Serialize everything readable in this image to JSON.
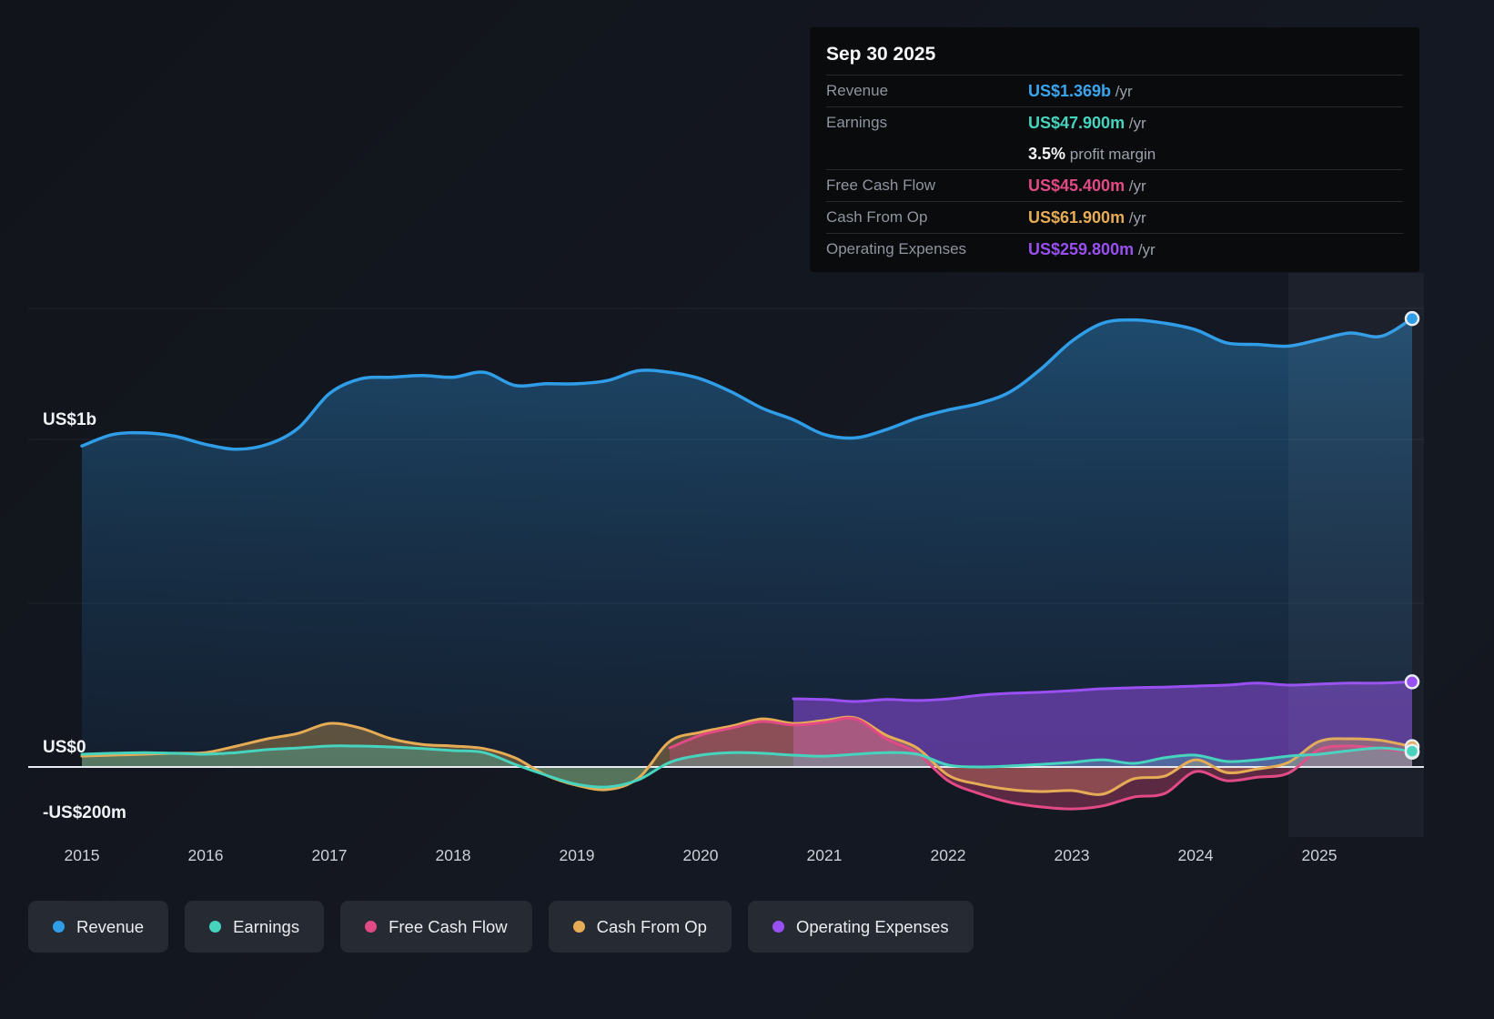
{
  "tooltip": {
    "date": "Sep 30 2025",
    "rows": [
      {
        "label": "Revenue",
        "value": "US$1.369b",
        "suffix": "/yr",
        "color": "#3ba6f0",
        "separator": true
      },
      {
        "label": "Earnings",
        "value": "US$47.900m",
        "suffix": "/yr",
        "color": "#46d4be",
        "separator": true
      },
      {
        "label": "",
        "value": "3.5%",
        "suffix": "profit margin",
        "color": "#f2f4f6",
        "separator": false
      },
      {
        "label": "Free Cash Flow",
        "value": "US$45.400m",
        "suffix": "/yr",
        "color": "#e14a84",
        "separator": true
      },
      {
        "label": "Cash From Op",
        "value": "US$61.900m",
        "suffix": "/yr",
        "color": "#e6ac55",
        "separator": true
      },
      {
        "label": "Operating Expenses",
        "value": "US$259.800m",
        "suffix": "/yr",
        "color": "#9a4ff2",
        "separator": true
      }
    ]
  },
  "legend": {
    "items": [
      {
        "label": "Revenue",
        "color": "#2f9de8"
      },
      {
        "label": "Earnings",
        "color": "#46d4be"
      },
      {
        "label": "Free Cash Flow",
        "color": "#e14a84"
      },
      {
        "label": "Cash From Op",
        "color": "#e6ac55"
      },
      {
        "label": "Operating Expenses",
        "color": "#9a4ff2"
      }
    ]
  },
  "chart_data": {
    "type": "area",
    "title": "Past earnings and revenue history with trailing values to Sep 30 2025",
    "unit": "US$ millions per year",
    "x_start": 2015,
    "x_step": 0.25,
    "x_end": 2025.75,
    "x_tick_start": 2015,
    "x_ticks": [
      "2015",
      "2016",
      "2017",
      "2018",
      "2019",
      "2020",
      "2021",
      "2022",
      "2023",
      "2024",
      "2025"
    ],
    "y_ticks": [
      {
        "label": "US$1b",
        "value": 1000
      },
      {
        "label": "US$0",
        "value": 0
      },
      {
        "label": "-US$200m",
        "value": -200
      }
    ],
    "ylim": [
      -230,
      1500
    ],
    "grid_values": [
      1400,
      1000,
      500
    ],
    "grid": true,
    "legend_position": "bottom",
    "highlight_start_x": 2024.75,
    "series": [
      {
        "name": "Revenue",
        "color": "#2f9de8",
        "gradient": true,
        "fill_opacity": 0.35,
        "line_width": 3.5,
        "end_marker": true,
        "values": [
          980,
          1015,
          1020,
          1010,
          985,
          970,
          985,
          1035,
          1140,
          1185,
          1190,
          1195,
          1190,
          1205,
          1165,
          1170,
          1170,
          1180,
          1210,
          1205,
          1185,
          1145,
          1095,
          1060,
          1015,
          1005,
          1030,
          1065,
          1090,
          1110,
          1145,
          1215,
          1300,
          1355,
          1365,
          1355,
          1335,
          1295,
          1290,
          1285,
          1305,
          1325,
          1315,
          1369
        ]
      },
      {
        "name": "Operating Expenses",
        "color": "#9a4ff2",
        "gradient": false,
        "fill_opacity": 0.5,
        "line_width": 3,
        "end_marker": true,
        "values": [
          null,
          null,
          null,
          null,
          null,
          null,
          null,
          null,
          null,
          null,
          null,
          null,
          null,
          null,
          null,
          null,
          null,
          null,
          null,
          null,
          null,
          null,
          null,
          208,
          206,
          200,
          206,
          203,
          208,
          219,
          225,
          228,
          233,
          239,
          242,
          244,
          247,
          250,
          256,
          250,
          253,
          256,
          256,
          260
        ]
      },
      {
        "name": "Cash From Op",
        "color": "#e6ac55",
        "gradient": false,
        "fill_opacity": 0.35,
        "line_width": 3,
        "end_marker": true,
        "values": [
          33,
          36,
          39,
          42,
          44,
          64,
          86,
          103,
          133,
          119,
          86,
          69,
          64,
          56,
          28,
          -25,
          -56,
          -69,
          -33,
          78,
          106,
          125,
          147,
          133,
          142,
          150,
          97,
          58,
          -25,
          -53,
          -69,
          -75,
          -72,
          -83,
          -36,
          -28,
          22,
          -17,
          -6,
          14,
          78,
          86,
          81,
          62
        ]
      },
      {
        "name": "Free Cash Flow",
        "color": "#e14a84",
        "gradient": false,
        "fill_opacity": 0.35,
        "line_width": 3,
        "end_marker": true,
        "values": [
          null,
          null,
          null,
          null,
          null,
          null,
          null,
          null,
          null,
          null,
          null,
          null,
          null,
          null,
          null,
          null,
          null,
          null,
          null,
          58,
          97,
          119,
          139,
          128,
          136,
          147,
          86,
          42,
          -42,
          -81,
          -108,
          -122,
          -128,
          -119,
          -92,
          -81,
          -14,
          -42,
          -31,
          -19,
          53,
          64,
          56,
          45
        ]
      },
      {
        "name": "Earnings",
        "color": "#46d4be",
        "gradient": false,
        "fill_opacity": 0.3,
        "line_width": 3,
        "end_marker": true,
        "values": [
          39,
          42,
          44,
          42,
          39,
          44,
          53,
          58,
          64,
          64,
          61,
          56,
          50,
          44,
          8,
          -25,
          -53,
          -61,
          -39,
          14,
          36,
          44,
          42,
          36,
          33,
          39,
          44,
          39,
          6,
          0,
          3,
          8,
          14,
          22,
          11,
          28,
          36,
          17,
          22,
          33,
          39,
          50,
          58,
          48
        ]
      }
    ]
  }
}
